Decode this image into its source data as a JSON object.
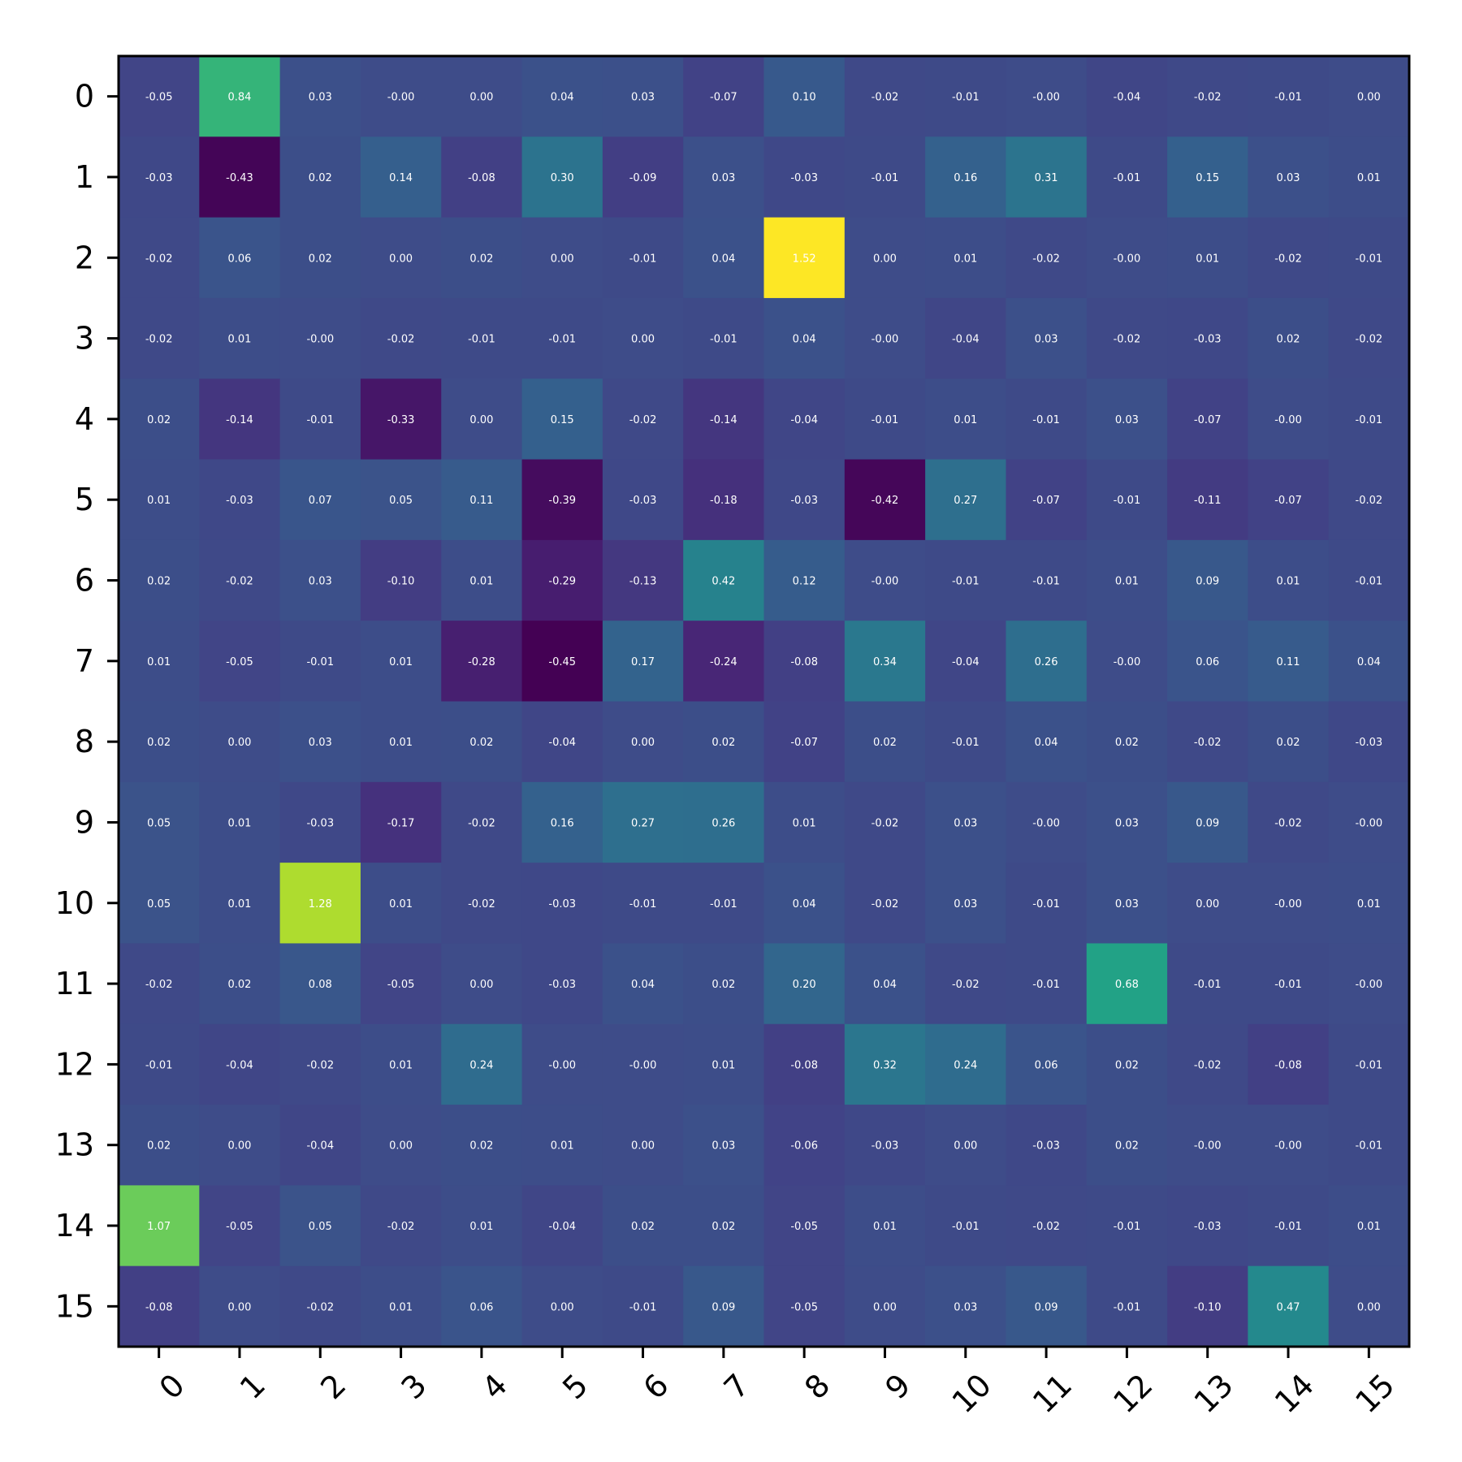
{
  "chart_data": {
    "type": "heatmap",
    "colormap": "viridis",
    "color_range": [
      -0.45,
      1.52
    ],
    "x_tick_labels": [
      "0",
      "1",
      "2",
      "3",
      "4",
      "5",
      "6",
      "7",
      "8",
      "9",
      "10",
      "11",
      "12",
      "13",
      "14",
      "15"
    ],
    "y_tick_labels": [
      "0",
      "1",
      "2",
      "3",
      "4",
      "5",
      "6",
      "7",
      "8",
      "9",
      "10",
      "11",
      "12",
      "13",
      "14",
      "15"
    ],
    "x_tick_rotation": 45,
    "values": [
      [
        -0.05,
        0.84,
        0.03,
        -0.0,
        0.0,
        0.04,
        0.03,
        -0.07,
        0.1,
        -0.02,
        -0.01,
        -0.0,
        -0.04,
        -0.02,
        -0.01,
        0.0
      ],
      [
        -0.03,
        -0.43,
        0.02,
        0.14,
        -0.08,
        0.3,
        -0.09,
        0.03,
        -0.03,
        -0.01,
        0.16,
        0.31,
        -0.01,
        0.15,
        0.03,
        0.01
      ],
      [
        -0.02,
        0.06,
        0.02,
        0.0,
        0.02,
        0.0,
        -0.01,
        0.04,
        1.52,
        0.0,
        0.01,
        -0.02,
        -0.0,
        0.01,
        -0.02,
        -0.01
      ],
      [
        -0.02,
        0.01,
        -0.0,
        -0.02,
        -0.01,
        -0.01,
        0.0,
        -0.01,
        0.04,
        -0.0,
        -0.04,
        0.03,
        -0.02,
        -0.03,
        0.02,
        -0.02
      ],
      [
        0.02,
        -0.14,
        -0.01,
        -0.33,
        0.0,
        0.15,
        -0.02,
        -0.14,
        -0.04,
        -0.01,
        0.01,
        -0.01,
        0.03,
        -0.07,
        -0.0,
        -0.01
      ],
      [
        0.01,
        -0.03,
        0.07,
        0.05,
        0.11,
        -0.39,
        -0.03,
        -0.18,
        -0.03,
        -0.42,
        0.27,
        -0.07,
        -0.01,
        -0.11,
        -0.07,
        -0.02
      ],
      [
        0.02,
        -0.02,
        0.03,
        -0.1,
        0.01,
        -0.29,
        -0.13,
        0.42,
        0.12,
        -0.0,
        -0.01,
        -0.01,
        0.01,
        0.09,
        0.01,
        -0.01
      ],
      [
        0.01,
        -0.05,
        -0.01,
        0.01,
        -0.28,
        -0.45,
        0.17,
        -0.24,
        -0.08,
        0.34,
        -0.04,
        0.26,
        -0.0,
        0.06,
        0.11,
        0.04
      ],
      [
        0.02,
        0.0,
        0.03,
        0.01,
        0.02,
        -0.04,
        0.0,
        0.02,
        -0.07,
        0.02,
        -0.01,
        0.04,
        0.02,
        -0.02,
        0.02,
        -0.03
      ],
      [
        0.05,
        0.01,
        -0.03,
        -0.17,
        -0.02,
        0.16,
        0.27,
        0.26,
        0.01,
        -0.02,
        0.03,
        -0.0,
        0.03,
        0.09,
        -0.02,
        -0.0
      ],
      [
        0.05,
        0.01,
        1.28,
        0.01,
        -0.02,
        -0.03,
        -0.01,
        -0.01,
        0.04,
        -0.02,
        0.03,
        -0.01,
        0.03,
        0.0,
        -0.0,
        0.01
      ],
      [
        -0.02,
        0.02,
        0.08,
        -0.05,
        0.0,
        -0.03,
        0.04,
        0.02,
        0.2,
        0.04,
        -0.02,
        -0.01,
        0.68,
        -0.01,
        -0.01,
        -0.0
      ],
      [
        -0.01,
        -0.04,
        -0.02,
        0.01,
        0.24,
        -0.0,
        -0.0,
        0.01,
        -0.08,
        0.32,
        0.24,
        0.06,
        0.02,
        -0.02,
        -0.08,
        -0.01
      ],
      [
        0.02,
        0.0,
        -0.04,
        0.0,
        0.02,
        0.01,
        0.0,
        0.03,
        -0.06,
        -0.03,
        0.0,
        -0.03,
        0.02,
        -0.0,
        -0.0,
        -0.01
      ],
      [
        1.07,
        -0.05,
        0.05,
        -0.02,
        0.01,
        -0.04,
        0.02,
        0.02,
        -0.05,
        0.01,
        -0.01,
        -0.02,
        -0.01,
        -0.03,
        -0.01,
        0.01
      ],
      [
        -0.08,
        0.0,
        -0.02,
        0.01,
        0.06,
        0.0,
        -0.01,
        0.09,
        -0.05,
        0.0,
        0.03,
        0.09,
        -0.01,
        -0.1,
        0.47,
        0.0
      ]
    ],
    "cell_labels": [
      [
        "-0.05",
        "0.84",
        "0.03",
        "-0.00",
        "0.00",
        "0.04",
        "0.03",
        "-0.07",
        "0.10",
        "-0.02",
        "-0.01",
        "-0.00",
        "-0.04",
        "-0.02",
        "-0.01",
        "0.00"
      ],
      [
        "-0.03",
        "-0.43",
        "0.02",
        "0.14",
        "-0.08",
        "0.30",
        "-0.09",
        "0.03",
        "-0.03",
        "-0.01",
        "0.16",
        "0.31",
        "-0.01",
        "0.15",
        "0.03",
        "0.01"
      ],
      [
        "-0.02",
        "0.06",
        "0.02",
        "0.00",
        "0.02",
        "0.00",
        "-0.01",
        "0.04",
        "1.52",
        "0.00",
        "0.01",
        "-0.02",
        "-0.00",
        "0.01",
        "-0.02",
        "-0.01"
      ],
      [
        "-0.02",
        "0.01",
        "-0.00",
        "-0.02",
        "-0.01",
        "-0.01",
        "0.00",
        "-0.01",
        "0.04",
        "-0.00",
        "-0.04",
        "0.03",
        "-0.02",
        "-0.03",
        "0.02",
        "-0.02"
      ],
      [
        "0.02",
        "-0.14",
        "-0.01",
        "-0.33",
        "0.00",
        "0.15",
        "-0.02",
        "-0.14",
        "-0.04",
        "-0.01",
        "0.01",
        "-0.01",
        "0.03",
        "-0.07",
        "-0.00",
        "-0.01"
      ],
      [
        "0.01",
        "-0.03",
        "0.07",
        "0.05",
        "0.11",
        "-0.39",
        "-0.03",
        "-0.18",
        "-0.03",
        "-0.42",
        "0.27",
        "-0.07",
        "-0.01",
        "-0.11",
        "-0.07",
        "-0.02"
      ],
      [
        "0.02",
        "-0.02",
        "0.03",
        "-0.10",
        "0.01",
        "-0.29",
        "-0.13",
        "0.42",
        "0.12",
        "-0.00",
        "-0.01",
        "-0.01",
        "0.01",
        "0.09",
        "0.01",
        "-0.01"
      ],
      [
        "0.01",
        "-0.05",
        "-0.01",
        "0.01",
        "-0.28",
        "-0.45",
        "0.17",
        "-0.24",
        "-0.08",
        "0.34",
        "-0.04",
        "0.26",
        "-0.00",
        "0.06",
        "0.11",
        "0.04"
      ],
      [
        "0.02",
        "0.00",
        "0.03",
        "0.01",
        "0.02",
        "-0.04",
        "0.00",
        "0.02",
        "-0.07",
        "0.02",
        "-0.01",
        "0.04",
        "0.02",
        "-0.02",
        "0.02",
        "-0.03"
      ],
      [
        "0.05",
        "0.01",
        "-0.03",
        "-0.17",
        "-0.02",
        "0.16",
        "0.27",
        "0.26",
        "0.01",
        "-0.02",
        "0.03",
        "-0.00",
        "0.03",
        "0.09",
        "-0.02",
        "-0.00"
      ],
      [
        "0.05",
        "0.01",
        "1.28",
        "0.01",
        "-0.02",
        "-0.03",
        "-0.01",
        "-0.01",
        "0.04",
        "-0.02",
        "0.03",
        "-0.01",
        "0.03",
        "0.00",
        "-0.00",
        "0.01"
      ],
      [
        "-0.02",
        "0.02",
        "0.08",
        "-0.05",
        "0.00",
        "-0.03",
        "0.04",
        "0.02",
        "0.20",
        "0.04",
        "-0.02",
        "-0.01",
        "0.68",
        "-0.01",
        "-0.01",
        "-0.00"
      ],
      [
        "-0.01",
        "-0.04",
        "-0.02",
        "0.01",
        "0.24",
        "-0.00",
        "-0.00",
        "0.01",
        "-0.08",
        "0.32",
        "0.24",
        "0.06",
        "0.02",
        "-0.02",
        "-0.08",
        "-0.01"
      ],
      [
        "0.02",
        "0.00",
        "-0.04",
        "0.00",
        "0.02",
        "0.01",
        "0.00",
        "0.03",
        "-0.06",
        "-0.03",
        "0.00",
        "-0.03",
        "0.02",
        "-0.00",
        "-0.00",
        "-0.01"
      ],
      [
        "1.07",
        "-0.05",
        "0.05",
        "-0.02",
        "0.01",
        "-0.04",
        "0.02",
        "0.02",
        "-0.05",
        "0.01",
        "-0.01",
        "-0.02",
        "-0.01",
        "-0.03",
        "-0.01",
        "0.01"
      ],
      [
        "-0.08",
        "0.00",
        "-0.02",
        "0.01",
        "0.06",
        "0.00",
        "-0.01",
        "0.09",
        "-0.05",
        "0.00",
        "0.03",
        "0.09",
        "-0.01",
        "-0.10",
        "0.47",
        "0.00"
      ]
    ],
    "title": "",
    "xlabel": "",
    "ylabel": "",
    "legend": "none"
  }
}
